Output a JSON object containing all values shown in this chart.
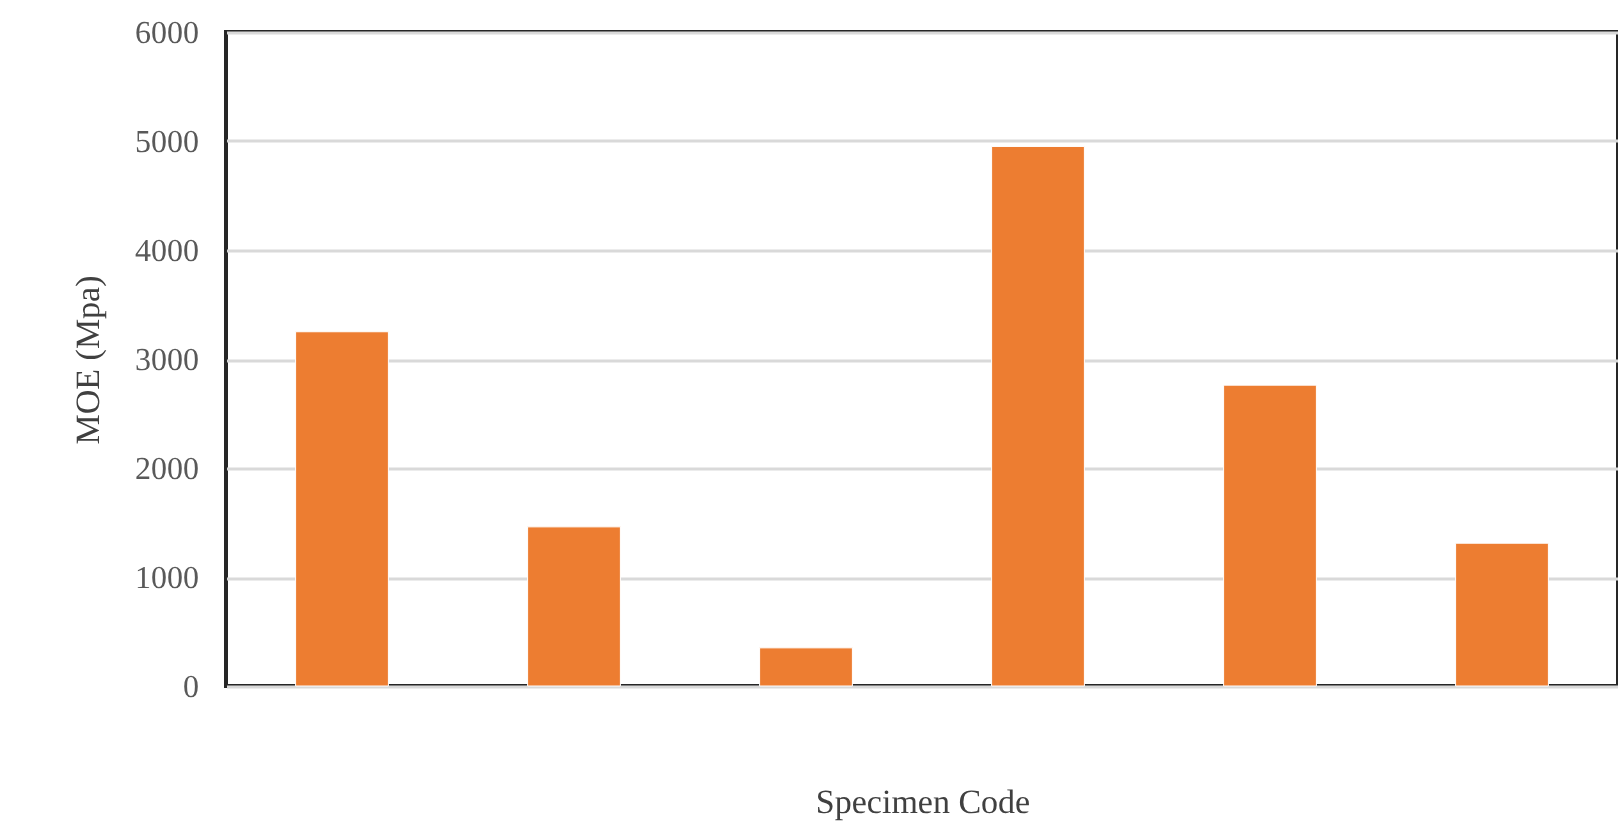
{
  "chart_data": {
    "type": "bar",
    "xlabel": "Specimen Code",
    "ylabel": "MOE (Mpa)",
    "categories": [
      null,
      null,
      null,
      null,
      null,
      null
    ],
    "values": [
      3250,
      1460,
      350,
      4950,
      2760,
      1310
    ],
    "color": "#ed7d31",
    "ylim": [
      0,
      6000
    ],
    "yticks": [
      0,
      1000,
      2000,
      3000,
      4000,
      5000,
      6000
    ],
    "grid": "y",
    "tick_labels": "y"
  }
}
